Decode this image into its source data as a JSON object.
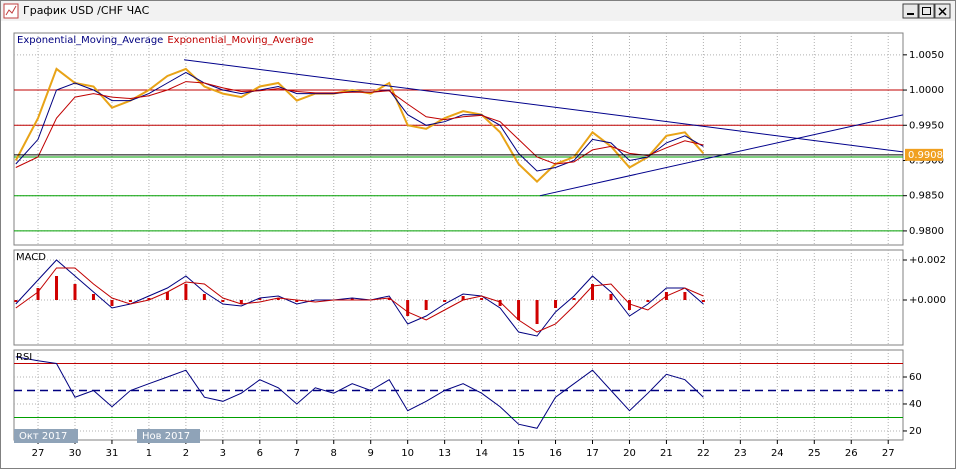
{
  "window_title": "График USD /CHF ЧАС",
  "months": [
    "Окт 2017",
    "Нов 2017"
  ],
  "chart_data": [
    {
      "type": "line",
      "x": [
        -0.6,
        0,
        0.5,
        1,
        1.5,
        2,
        2.5,
        3,
        3.5,
        4,
        4.5,
        5,
        5.5,
        6,
        6.5,
        7,
        7.5,
        8,
        8.5,
        9,
        9.5,
        10,
        10.5,
        11,
        11.5,
        12,
        12.5,
        13,
        13.5,
        14,
        14.5,
        15,
        15.5,
        16,
        16.5,
        17,
        17.5,
        18
      ],
      "xlim": [
        -0.65,
        23.4
      ],
      "ylim": [
        0.978,
        1.0081
      ],
      "yticks": [
        {
          "value": 1.005,
          "label": "1.0050"
        },
        {
          "value": 1.0,
          "label": "1.0000"
        },
        {
          "value": 0.995,
          "label": "0.9950"
        },
        {
          "value": 0.99,
          "label": "0.9900"
        },
        {
          "value": 0.985,
          "label": "0.9850"
        },
        {
          "value": 0.98,
          "label": "0.9800"
        }
      ],
      "grid": true,
      "series": [
        {
          "color": "#e8a317",
          "values": [
            0.99,
            0.996,
            1.003,
            1.001,
            1.0005,
            0.9975,
            0.9985,
            1.0,
            1.002,
            1.003,
            1.0005,
            0.9995,
            0.999,
            1.0005,
            1.001,
            0.9985,
            0.9995,
            0.9995,
            1.0,
            0.9995,
            1.001,
            0.995,
            0.9945,
            0.996,
            0.997,
            0.9965,
            0.994,
            0.9895,
            0.987,
            0.9895,
            0.9905,
            0.994,
            0.992,
            0.989,
            0.9905,
            0.9935,
            0.994,
            0.991
          ]
        },
        {
          "name": "Exponential_Moving_Average",
          "color": "#000080",
          "values": [
            0.9895,
            0.993,
            1.0,
            1.001,
            1.0,
            0.9985,
            0.9985,
            0.9995,
            1.001,
            1.0025,
            1.001,
            1.0,
            0.9995,
            1.0,
            1.0005,
            0.9995,
            0.9995,
            0.9995,
            0.9998,
            0.9997,
            1.0,
            0.9965,
            0.995,
            0.9955,
            0.9965,
            0.9965,
            0.995,
            0.991,
            0.9885,
            0.989,
            0.99,
            0.993,
            0.9925,
            0.99,
            0.9905,
            0.9925,
            0.9935,
            0.992
          ]
        },
        {
          "name": "Exponential_Moving_Average",
          "color": "#c00000",
          "values": [
            0.989,
            0.9905,
            0.996,
            0.999,
            0.9995,
            0.999,
            0.9988,
            0.9992,
            1.0,
            1.0012,
            1.001,
            1.0003,
            0.9998,
            0.9999,
            1.0002,
            0.9998,
            0.9996,
            0.9996,
            0.9997,
            0.9997,
            0.9999,
            0.998,
            0.9962,
            0.9958,
            0.9962,
            0.9964,
            0.9955,
            0.993,
            0.9905,
            0.9895,
            0.9898,
            0.9915,
            0.992,
            0.991,
            0.9907,
            0.9918,
            0.9928,
            0.9922
          ]
        }
      ],
      "hlines": [
        {
          "value": 1.0,
          "color": "#c00000"
        },
        {
          "value": 0.995,
          "color": "#c00000"
        },
        {
          "value": 0.9905,
          "color": "#00a000"
        },
        {
          "value": 0.985,
          "color": "#00a000"
        },
        {
          "value": 0.98,
          "color": "#00a000"
        }
      ],
      "trendlines": [
        {
          "color": "#00008b",
          "x": [
            3.95,
            23.4
          ],
          "values": [
            1.0043,
            0.99122
          ]
        },
        {
          "color": "#00008b",
          "x": [
            13.58,
            23.4
          ],
          "values": [
            0.985,
            0.99648
          ]
        }
      ],
      "last_price": 0.9908
    },
    {
      "type": "line",
      "title": "MACD",
      "x": [
        -0.6,
        0,
        0.5,
        1,
        1.5,
        2,
        2.5,
        3,
        3.5,
        4,
        4.5,
        5,
        5.5,
        6,
        6.5,
        7,
        7.5,
        8,
        8.5,
        9,
        9.5,
        10,
        10.5,
        11,
        11.5,
        12,
        12.5,
        13,
        13.5,
        14,
        14.5,
        15,
        15.5,
        16,
        16.5,
        17,
        17.5,
        18
      ],
      "xlim": [
        -0.65,
        23.4
      ],
      "ylim": [
        -0.00225,
        0.0025
      ],
      "yticks": [
        {
          "value": 0.002,
          "label": "+0.002"
        },
        {
          "value": 0,
          "label": "+0.000"
        }
      ],
      "grid": true,
      "series": [
        {
          "type": "bar",
          "color": "#d00000",
          "values": [
            -0.0001,
            0.0006,
            0.0012,
            0.0008,
            0.0003,
            -0.0003,
            -0.0001,
            0.0001,
            0.0004,
            0.0008,
            0.0003,
            -0.0001,
            -0.0002,
            0.0001,
            0.0001,
            -0.0001,
            0,
            0,
            0.0001,
            0,
            0.0001,
            -0.0008,
            -0.0005,
            -0.0001,
            0.0002,
            0.0001,
            -0.0003,
            -0.001,
            -0.0012,
            -0.0004,
            0.0001,
            0.0008,
            0.0003,
            -0.0005,
            -0.0001,
            0.0004,
            0.0004,
            -0.0001
          ]
        },
        {
          "color": "#000080",
          "values": [
            -0.0002,
            0.001,
            0.002,
            0.0012,
            0.0004,
            -0.0004,
            -0.0002,
            0.0002,
            0.0006,
            0.0012,
            0.0004,
            -0.0002,
            -0.0003,
            0.0001,
            0.0002,
            -0.0002,
            0,
            0,
            0.0001,
            0,
            0.0002,
            -0.0012,
            -0.0008,
            -0.0002,
            0.0003,
            0.0002,
            -0.0004,
            -0.0016,
            -0.0018,
            -0.0006,
            0.0002,
            0.0012,
            0.0004,
            -0.0008,
            -0.0002,
            0.0006,
            0.0006,
            -0.0002
          ]
        },
        {
          "color": "#c00000",
          "values": [
            -0.0004,
            0.0004,
            0.0016,
            0.0016,
            0.0008,
            0.0001,
            -0.0002,
            0,
            0.0004,
            0.0009,
            0.0008,
            0.0001,
            -0.0002,
            -0.0001,
            0.0001,
            0,
            -0.0001,
            0,
            0,
            0,
            0.0001,
            -0.0006,
            -0.001,
            -0.0005,
            0,
            0.0002,
            -0.0001,
            -0.001,
            -0.0016,
            -0.0012,
            -0.0003,
            0.0007,
            0.0008,
            -0.0002,
            -0.0005,
            0.0002,
            0.0006,
            0.0002
          ]
        }
      ]
    },
    {
      "type": "line",
      "title": "RSI",
      "x": [
        -0.6,
        0,
        0.5,
        1,
        1.5,
        2,
        2.5,
        3,
        3.5,
        4,
        4.5,
        5,
        5.5,
        6,
        6.5,
        7,
        7.5,
        8,
        8.5,
        9,
        9.5,
        10,
        10.5,
        11,
        11.5,
        12,
        12.5,
        13,
        13.5,
        14,
        14.5,
        15,
        15.5,
        16,
        16.5,
        17,
        17.5,
        18
      ],
      "xlim": [
        -0.65,
        23.4
      ],
      "ylim": [
        13.3,
        80
      ],
      "yticks": [
        60,
        40,
        20
      ],
      "grid": true,
      "categories": [
        "27",
        "30",
        "31",
        "1",
        "2",
        "3",
        "6",
        "7",
        "8",
        "9",
        "10",
        "13",
        "14",
        "15",
        "16",
        "17",
        "20",
        "21",
        "22",
        "23",
        "24",
        "25",
        "26",
        "27"
      ],
      "series": [
        {
          "color": "#000080",
          "values": [
            75,
            72,
            70,
            45,
            50,
            38,
            50,
            55,
            60,
            65,
            45,
            42,
            48,
            58,
            52,
            40,
            52,
            48,
            55,
            50,
            58,
            35,
            42,
            50,
            55,
            48,
            38,
            25,
            22,
            45,
            55,
            65,
            50,
            35,
            48,
            62,
            58,
            45
          ]
        }
      ],
      "hlines": [
        {
          "value": 70,
          "color": "#c00000"
        },
        {
          "value": 50,
          "color": "#000080",
          "dash": true
        },
        {
          "value": 30,
          "color": "#00a000"
        }
      ]
    }
  ]
}
